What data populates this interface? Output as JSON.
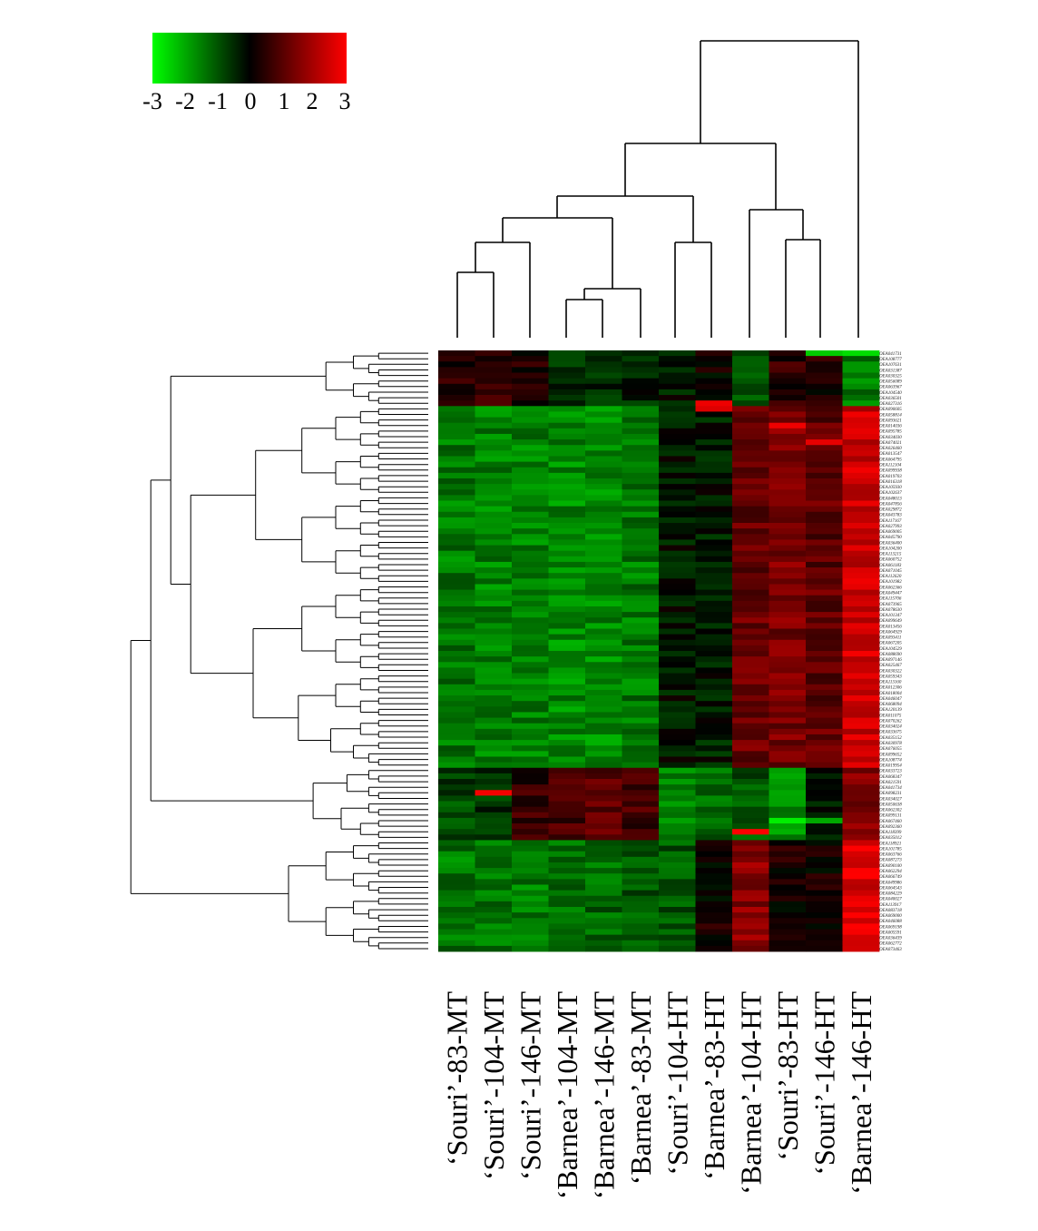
{
  "chart_data": {
    "type": "heatmap",
    "title": "",
    "colorscale": {
      "min": -3,
      "max": 3,
      "low_color": "#00ff00",
      "mid_color": "#000000",
      "high_color": "#ff0000",
      "tick_labels": [
        "-3",
        "-2",
        "-1",
        "0",
        "1",
        "2",
        "3"
      ]
    },
    "columns": [
      "‘Souri’-83-MT",
      "‘Souri’-104-MT",
      "‘Souri’-146-MT",
      "‘Barnea’-104-MT",
      "‘Barnea’-146-MT",
      "‘Barnea’-83-MT",
      "‘Souri’-104-HT",
      "‘Barnea’-83-HT",
      "‘Barnea’-104-HT",
      "‘Souri’-83-HT",
      "‘Souri’-146-HT",
      "‘Barnea’-146-HT"
    ],
    "rows": [
      "OEA041731",
      "OEA108777",
      "OEA107631",
      "OEA031387",
      "OEA030325",
      "OEA056089",
      "OEA063967",
      "OEA104540",
      "OEA036501",
      "OEA027316",
      "OEA090605",
      "OEA058814",
      "OEA093621",
      "OEA014036",
      "OEA095785",
      "OEA034030",
      "OEA074021",
      "OEA026460",
      "OEA013547",
      "OEA064795",
      "OEA112104",
      "OEA099938",
      "OEA019703",
      "OEA016318",
      "OEA105930",
      "OEA102637",
      "OEA048013",
      "OEA047856",
      "OEA029872",
      "OEA043783",
      "OEA117167",
      "OEA027993",
      "OEA069005",
      "OEA045790",
      "OEA036400",
      "OEA104200",
      "OEA113215",
      "OEA060752",
      "OEA061183",
      "OEA071045",
      "OEA112620",
      "OEA101982",
      "OEA062366",
      "OEA049447",
      "OEA115706",
      "OEA073965",
      "OEA078630",
      "OEA101347",
      "OEA099649",
      "OEA013456",
      "OEA064929",
      "OEA093411",
      "OEA067205",
      "OEA104529",
      "OEA088690",
      "OEA097146",
      "OEA025467",
      "OEA030322",
      "OEA059343",
      "OEA113160",
      "OEA012306",
      "OEA018004",
      "OEA046047",
      "OEA068094",
      "OEA120139",
      "OEA011075",
      "OEA070262",
      "OEA034024",
      "OEA033675",
      "OEA035152",
      "OEA030978",
      "OEA076055",
      "OEA099652",
      "OEA108774",
      "OEA019954",
      "OEA033723",
      "OEA068347",
      "OEA021591",
      "OEA041734",
      "OEA098231",
      "OEA034027",
      "OEA050638",
      "OEA062302",
      "OEA099131",
      "OEA067460",
      "OEA092360",
      "OEA118399",
      "OEA035012",
      "OEA118921",
      "OEA101785",
      "OEA063766",
      "OEA087273",
      "OEA090100",
      "OEA062294",
      "OEA066749",
      "OEA049986",
      "OEA064543",
      "OEA084229",
      "OEA040027",
      "OEA113917",
      "OEA083718",
      "OEA069000",
      "OEA046088",
      "OEA069198",
      "OEA005591",
      "OEA036439",
      "OEA062772",
      "OEA073463"
    ],
    "values": [],
    "row_dendrogram": true,
    "column_dendrogram": true,
    "legend_position": "top-left"
  }
}
